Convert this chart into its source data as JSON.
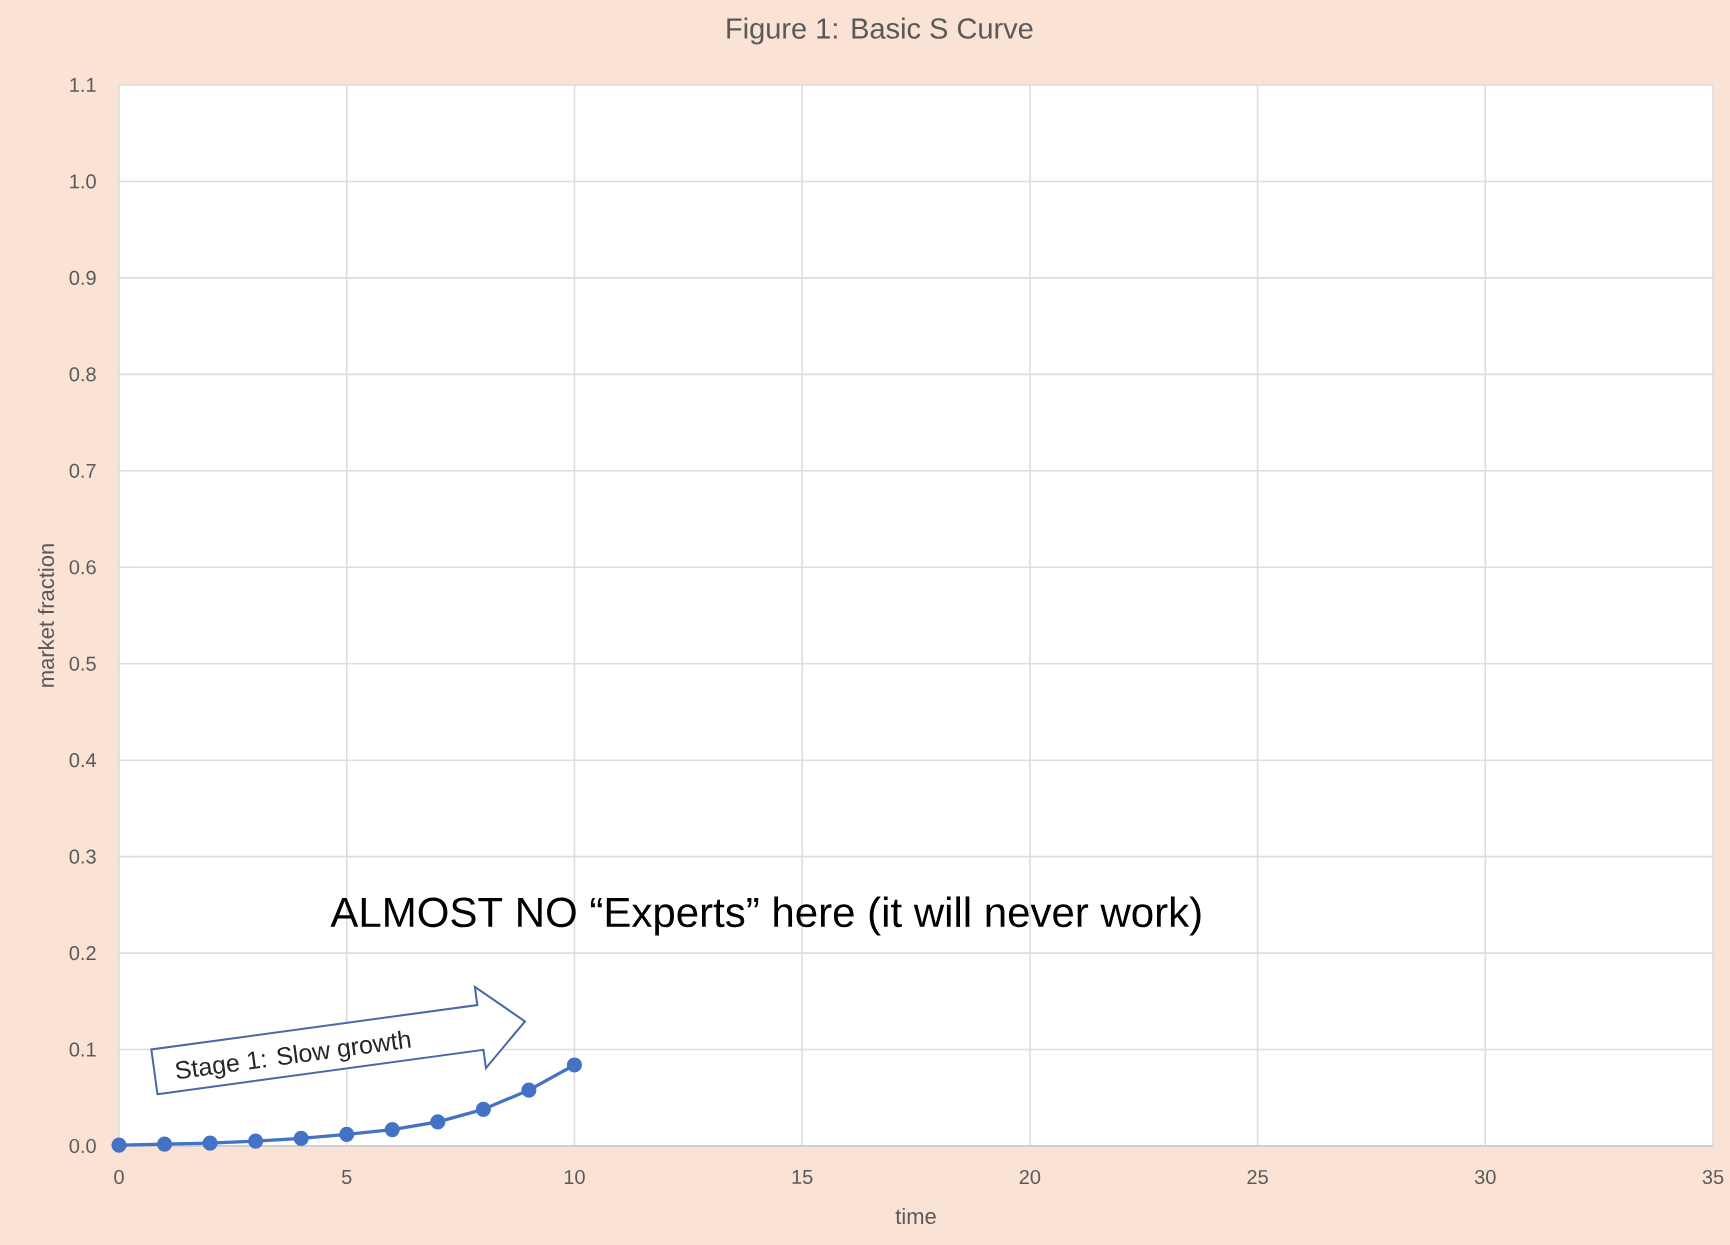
{
  "chart_data": {
    "type": "line",
    "title": "Figure 1: Basic S Curve",
    "xlabel": "time",
    "ylabel": "market fraction",
    "x": [
      0,
      1,
      2,
      3,
      4,
      5,
      6,
      7,
      8,
      9,
      10
    ],
    "values": [
      0.001,
      0.002,
      0.003,
      0.005,
      0.008,
      0.012,
      0.017,
      0.025,
      0.038,
      0.058,
      0.084
    ],
    "color": "#4472c4",
    "marker": "circle",
    "line_style": "solid",
    "grid": true,
    "xlim": [
      0,
      35
    ],
    "ylim": [
      0,
      1.1
    ],
    "xticks": [
      0,
      5,
      10,
      15,
      20,
      25,
      30,
      35
    ],
    "yticks": [
      {
        "value": 0,
        "label": "0.0"
      },
      0.1,
      0.2,
      0.3,
      0.4,
      0.5,
      0.6,
      0.7,
      0.8,
      0.9,
      {
        "value": 1,
        "label": "1.0"
      },
      1.1
    ],
    "annotations": [
      "ALMOST NO  “Experts” here (it will never work)",
      "Stage 1: Slow growth"
    ]
  }
}
